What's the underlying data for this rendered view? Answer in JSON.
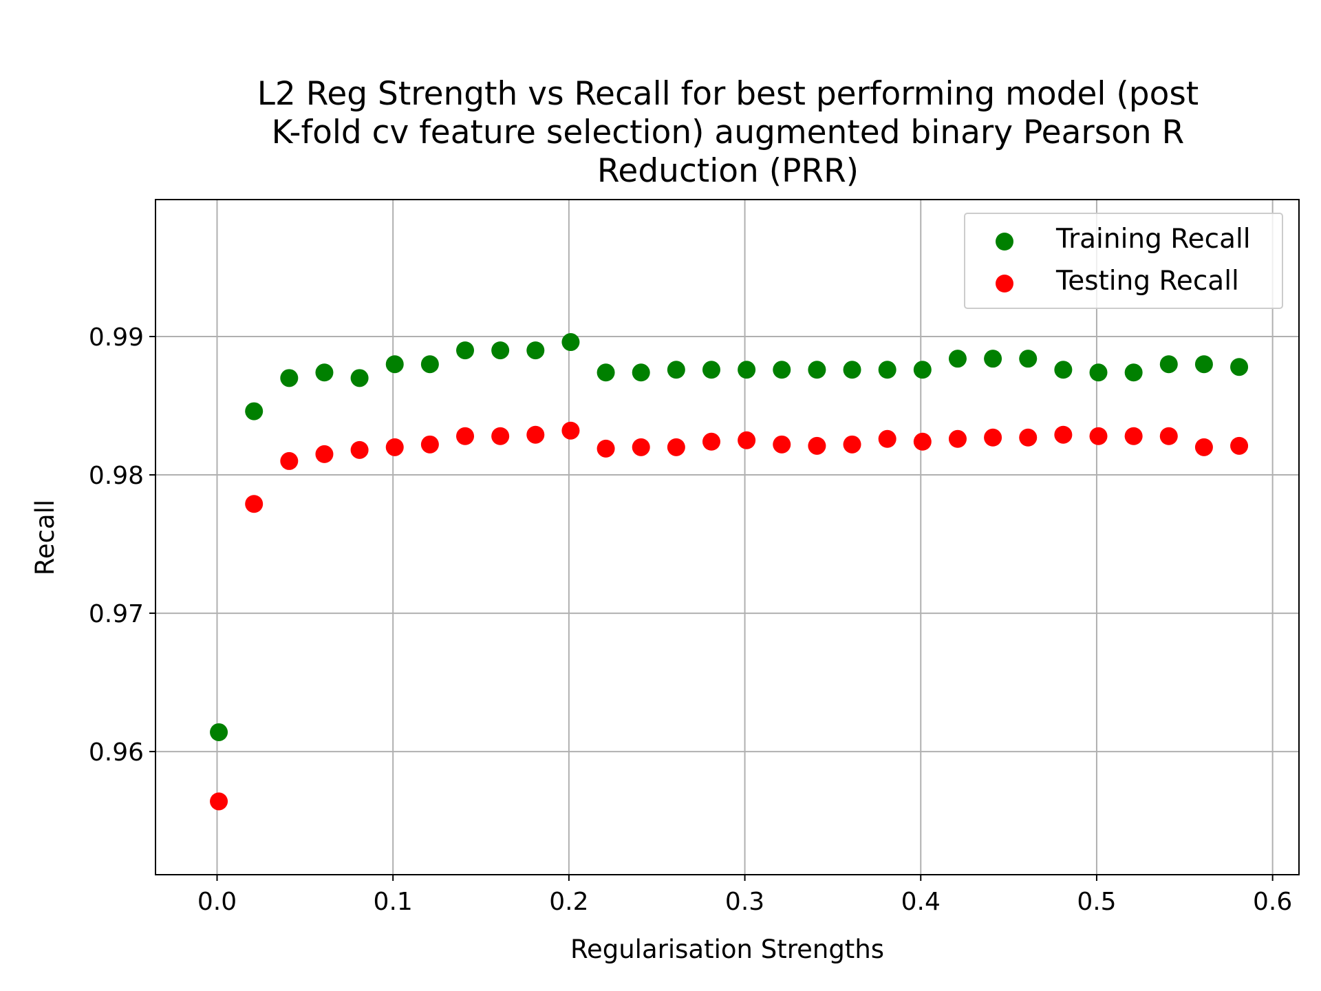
{
  "chart_data": {
    "type": "scatter",
    "title_lines": [
      "L2 Reg Strength vs Recall for best performing model (post",
      "K-fold cv feature selection) augmented binary Pearson R",
      "Reduction (PRR)"
    ],
    "xlabel": "Regularisation Strengths",
    "ylabel": "Recall",
    "xlim": [
      -0.035,
      0.615
    ],
    "ylim": [
      0.9511,
      0.9999
    ],
    "xticks": [
      0.0,
      0.1,
      0.2,
      0.3,
      0.4,
      0.5,
      0.6
    ],
    "xtick_labels": [
      "0.0",
      "0.1",
      "0.2",
      "0.3",
      "0.4",
      "0.5",
      "0.6"
    ],
    "yticks": [
      0.96,
      0.97,
      0.98,
      0.99
    ],
    "ytick_labels": [
      "0.96",
      "0.97",
      "0.98",
      "0.99"
    ],
    "grid": true,
    "legend_position": "top-right",
    "x": [
      0.001,
      0.021,
      0.041,
      0.061,
      0.081,
      0.101,
      0.121,
      0.141,
      0.161,
      0.181,
      0.201,
      0.221,
      0.241,
      0.261,
      0.281,
      0.301,
      0.321,
      0.341,
      0.361,
      0.381,
      0.401,
      0.421,
      0.441,
      0.461,
      0.481,
      0.501,
      0.521,
      0.541,
      0.561,
      0.581
    ],
    "series": [
      {
        "name": "Training Recall",
        "color": "#008000",
        "values": [
          0.9614,
          0.9846,
          0.987,
          0.9874,
          0.987,
          0.988,
          0.988,
          0.989,
          0.989,
          0.989,
          0.9896,
          0.9874,
          0.9874,
          0.9876,
          0.9876,
          0.9876,
          0.9876,
          0.9876,
          0.9876,
          0.9876,
          0.9876,
          0.9884,
          0.9884,
          0.9884,
          0.9876,
          0.9874,
          0.9874,
          0.988,
          0.988,
          0.9878
        ]
      },
      {
        "name": "Testing Recall",
        "color": "#ff0000",
        "values": [
          0.9564,
          0.9779,
          0.981,
          0.9815,
          0.9818,
          0.982,
          0.9822,
          0.9828,
          0.9828,
          0.9829,
          0.9832,
          0.9819,
          0.982,
          0.982,
          0.9824,
          0.9825,
          0.9822,
          0.9821,
          0.9822,
          0.9826,
          0.9824,
          0.9826,
          0.9827,
          0.9827,
          0.9829,
          0.9828,
          0.9828,
          0.9828,
          0.982,
          0.9821
        ]
      }
    ]
  }
}
